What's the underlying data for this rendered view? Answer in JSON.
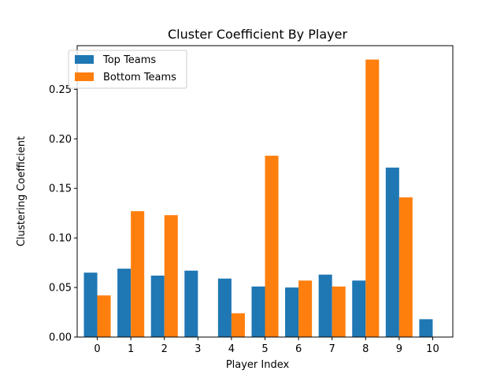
{
  "chart_data": {
    "type": "bar",
    "title": "Cluster Coefficient By Player",
    "xlabel": "Player Index",
    "ylabel": "Clustering Coefficient",
    "categories": [
      "0",
      "1",
      "2",
      "3",
      "4",
      "5",
      "6",
      "7",
      "8",
      "9",
      "10"
    ],
    "series": [
      {
        "name": "Top Teams",
        "color": "#1f77b4",
        "values": [
          0.065,
          0.069,
          0.062,
          0.067,
          0.059,
          0.051,
          0.05,
          0.063,
          0.057,
          0.171,
          0.018
        ]
      },
      {
        "name": "Bottom Teams",
        "color": "#ff7f0e",
        "values": [
          0.042,
          0.127,
          0.123,
          0.0,
          0.024,
          0.183,
          0.057,
          0.051,
          0.28,
          0.141,
          0.0
        ]
      }
    ],
    "yticks": [
      "0.00",
      "0.05",
      "0.10",
      "0.15",
      "0.20",
      "0.25"
    ],
    "ylim": [
      0,
      0.294
    ],
    "grid": false,
    "legend_position": "top-left"
  }
}
